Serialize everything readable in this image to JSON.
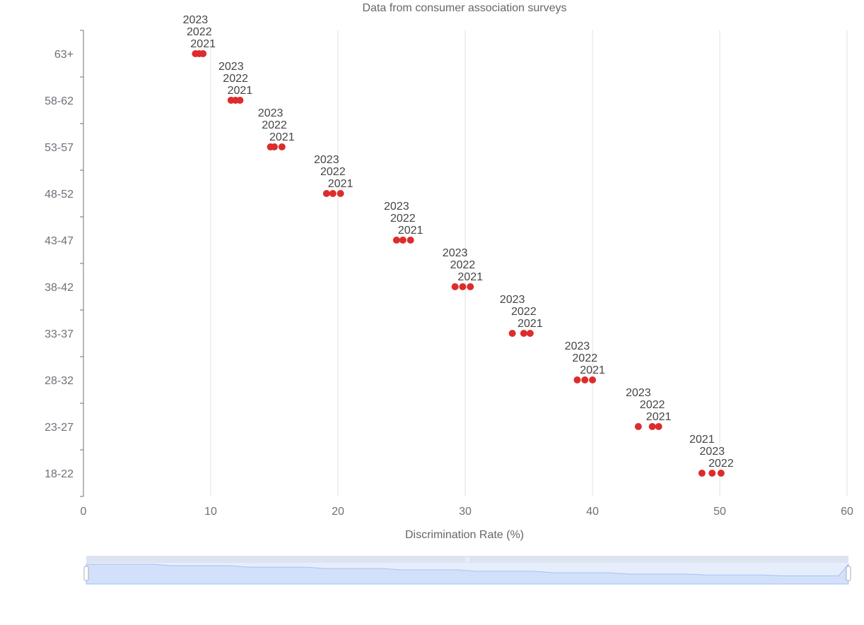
{
  "chart_data": {
    "type": "scatter",
    "title": "Data from consumer association surveys",
    "xlabel": "Discrimination Rate (%)",
    "ylabel": "",
    "xlim": [
      0,
      60
    ],
    "xticks": [
      "0",
      "10",
      "20",
      "30",
      "40",
      "50",
      "60"
    ],
    "categories": [
      "18-22",
      "23-27",
      "28-32",
      "33-37",
      "38-42",
      "43-47",
      "48-52",
      "53-57",
      "58-62",
      "63+"
    ],
    "series": [
      {
        "name": "2021",
        "values": [
          48.6,
          45.2,
          40.0,
          35.1,
          30.4,
          25.7,
          20.2,
          15.6,
          12.3,
          9.4
        ]
      },
      {
        "name": "2022",
        "values": [
          50.1,
          44.7,
          39.4,
          34.6,
          29.8,
          25.1,
          19.6,
          15.0,
          11.95,
          9.1
        ]
      },
      {
        "name": "2023",
        "values": [
          49.4,
          43.6,
          38.8,
          33.7,
          29.2,
          24.6,
          19.1,
          14.7,
          11.6,
          8.8
        ]
      }
    ],
    "grid": true,
    "point_color": "#dd2c2c",
    "data_zoom": {
      "start_percent": 0,
      "end_percent": 100,
      "handle_label": "|||"
    }
  }
}
